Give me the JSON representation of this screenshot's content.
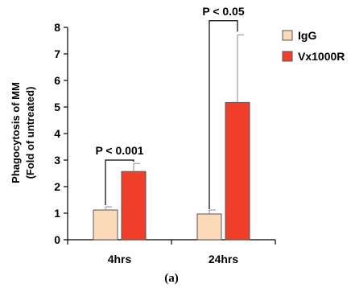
{
  "chart_data": {
    "type": "bar",
    "categories": [
      "4hrs",
      "24hrs"
    ],
    "series": [
      {
        "name": "IgG",
        "values": [
          1.12,
          0.97
        ],
        "errors": [
          0.12,
          0.15
        ],
        "color": "#FCD9B8"
      },
      {
        "name": "Vx1000R",
        "values": [
          2.57,
          5.17
        ],
        "errors": [
          0.3,
          2.55
        ],
        "color": "#F0402B"
      }
    ],
    "ylabel_line1": "Phagocytosis of MM",
    "ylabel_line2": "(Fold of untreated)",
    "ylim": [
      0,
      8
    ],
    "yticks": [
      "0",
      "1",
      "2",
      "3",
      "4",
      "5",
      "6",
      "7",
      "8"
    ],
    "annotations": [
      {
        "category": "4hrs",
        "text": "P < 0.001",
        "bracket_top": 3.0
      },
      {
        "category": "24hrs",
        "text": "P < 0.05",
        "bracket_top": 8.25
      }
    ],
    "legend_position": "top-right",
    "caption": "(a)"
  }
}
